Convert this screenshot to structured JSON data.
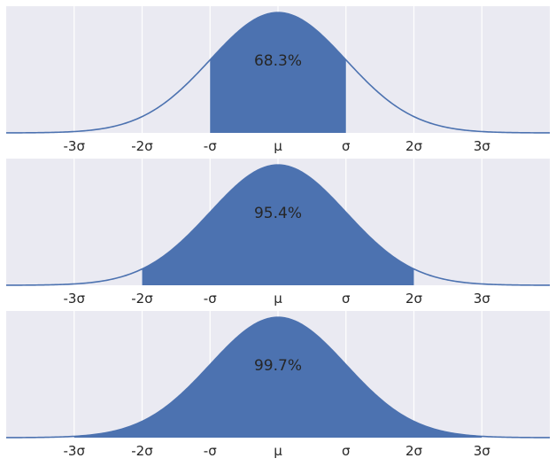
{
  "chart_data": [
    {
      "type": "area",
      "title": "",
      "xlabel": "",
      "ylabel": "",
      "xlim": [
        -4.0,
        4.0
      ],
      "ylim": [
        0,
        0.42
      ],
      "grid": true,
      "tick_values": [
        -3,
        -2,
        -1,
        0,
        1,
        2,
        3
      ],
      "tick_labels": [
        "-3σ",
        "-2σ",
        "-σ",
        "μ",
        "σ",
        "2σ",
        "3σ"
      ],
      "curve": "standard normal density",
      "shaded_range": [
        -1,
        1
      ],
      "annotation": "68.3%",
      "color": "#4c72b0"
    },
    {
      "type": "area",
      "title": "",
      "xlabel": "",
      "ylabel": "",
      "xlim": [
        -4.0,
        4.0
      ],
      "ylim": [
        0,
        0.42
      ],
      "grid": true,
      "tick_values": [
        -3,
        -2,
        -1,
        0,
        1,
        2,
        3
      ],
      "tick_labels": [
        "-3σ",
        "-2σ",
        "-σ",
        "μ",
        "σ",
        "2σ",
        "3σ"
      ],
      "curve": "standard normal density",
      "shaded_range": [
        -2,
        2
      ],
      "annotation": "95.4%",
      "color": "#4c72b0"
    },
    {
      "type": "area",
      "title": "",
      "xlabel": "",
      "ylabel": "",
      "xlim": [
        -4.0,
        4.0
      ],
      "ylim": [
        0,
        0.42
      ],
      "grid": true,
      "tick_values": [
        -3,
        -2,
        -1,
        0,
        1,
        2,
        3
      ],
      "tick_labels": [
        "-3σ",
        "-2σ",
        "-σ",
        "μ",
        "σ",
        "2σ",
        "3σ"
      ],
      "curve": "standard normal density",
      "shaded_range": [
        -3,
        3
      ],
      "annotation": "99.7%",
      "color": "#4c72b0"
    }
  ]
}
